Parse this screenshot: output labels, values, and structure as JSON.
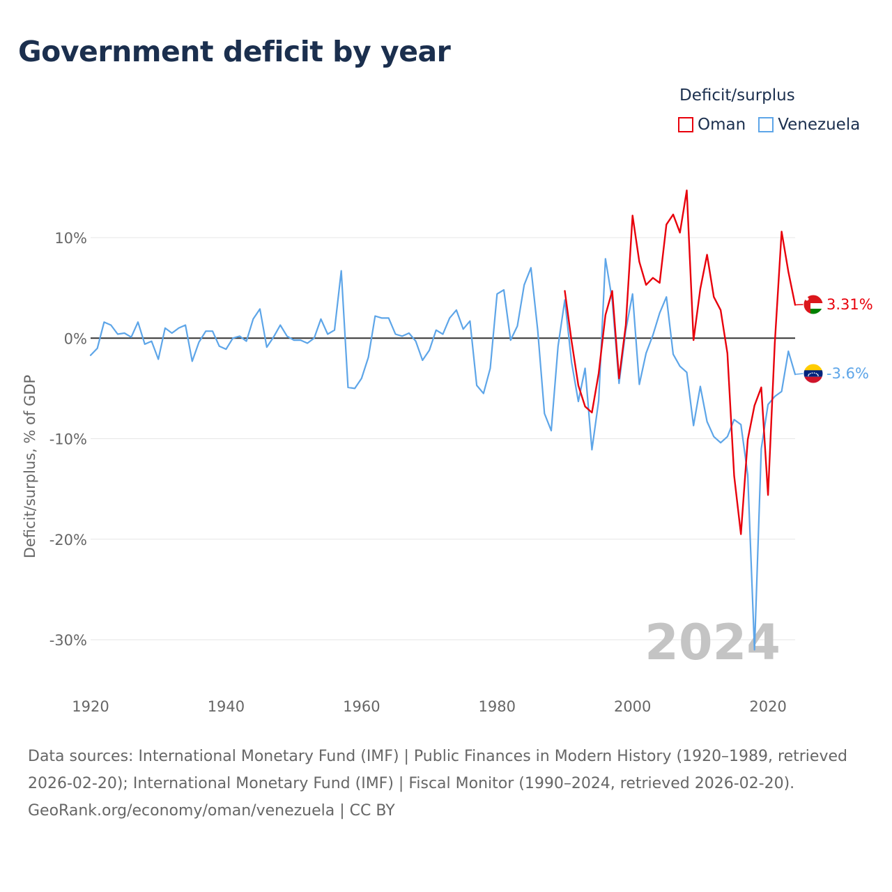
{
  "title": "Government deficit by year",
  "legend": {
    "title": "Deficit/surplus",
    "items": [
      {
        "label": "Oman",
        "color": "#e8000b"
      },
      {
        "label": "Venezuela",
        "color": "#5da5e8"
      }
    ]
  },
  "chart_data": {
    "type": "line",
    "ylabel": "Deficit/surplus, % of GDP",
    "xlabel": "",
    "xlim": [
      1920,
      2024
    ],
    "ylim": [
      -35,
      17
    ],
    "x_ticks": [
      1920,
      1940,
      1960,
      1980,
      2000,
      2020
    ],
    "x_tick_labels": [
      "1920",
      "1940",
      "1960",
      "1980",
      "2000",
      "2020"
    ],
    "y_ticks": [
      10,
      0,
      -10,
      -20,
      -30
    ],
    "y_tick_labels": [
      "10%",
      "0%",
      "-10%",
      "-20%",
      "-30%"
    ],
    "year_label": "2024",
    "series": [
      {
        "name": "Oman",
        "color": "#e8000b",
        "end_label": "3.31%",
        "flag_icon": "oman-flag-icon",
        "x_start": 1990,
        "values": [
          4.7,
          -0.3,
          -4.7,
          -6.8,
          -7.4,
          -3.5,
          2.3,
          4.7,
          -4.0,
          1.3,
          12.2,
          7.6,
          5.3,
          6.0,
          5.5,
          11.3,
          12.3,
          10.5,
          14.7,
          -0.2,
          4.9,
          8.3,
          4.1,
          2.8,
          -1.5,
          -13.7,
          -19.5,
          -10.1,
          -6.7,
          -4.9,
          -15.6,
          -0.5,
          10.6,
          6.6,
          3.31
        ]
      },
      {
        "name": "Venezuela",
        "color": "#5da5e8",
        "end_label": "-3.6%",
        "flag_icon": "venezuela-flag-icon",
        "x_start": 1920,
        "values": [
          -1.7,
          -1.0,
          1.6,
          1.3,
          0.4,
          0.5,
          0.1,
          1.6,
          -0.6,
          -0.3,
          -2.1,
          1.0,
          0.5,
          1.0,
          1.3,
          -2.3,
          -0.4,
          0.7,
          0.7,
          -0.8,
          -1.1,
          0.0,
          0.2,
          -0.3,
          1.9,
          2.9,
          -0.9,
          0.1,
          1.3,
          0.2,
          -0.2,
          -0.2,
          -0.5,
          0.0,
          1.9,
          0.4,
          0.8,
          6.7,
          -4.9,
          -5.0,
          -4.0,
          -1.9,
          2.2,
          2.0,
          2.0,
          0.4,
          0.2,
          0.5,
          -0.3,
          -2.2,
          -1.2,
          0.8,
          0.4,
          2.0,
          2.8,
          0.9,
          1.7,
          -4.7,
          -5.5,
          -3.0,
          4.4,
          4.8,
          -0.2,
          1.2,
          5.3,
          7.0,
          0.8,
          -7.5,
          -9.2,
          -0.8,
          3.8,
          -2.4,
          -6.3,
          -3.0,
          -11.1,
          -6.2,
          7.9,
          3.8,
          -4.5,
          0.8,
          4.4,
          -4.6,
          -1.5,
          0.3,
          2.5,
          4.1,
          -1.6,
          -2.8,
          -3.4,
          -8.7,
          -4.8,
          -8.3,
          -9.8,
          -10.4,
          -9.8,
          -8.1,
          -8.6,
          -13.6,
          -31.0,
          -11.0,
          -6.6,
          -5.8,
          -5.3,
          -1.3,
          -3.6
        ]
      }
    ]
  },
  "footer": {
    "sources": "Data sources: International Monetary Fund (IMF) | Public Finances in Modern History (1920–1989, retrieved 2026-02-20); International Monetary Fund (IMF) | Fiscal Monitor (1990–2024, retrieved 2026-02-20).",
    "credit": "GeoRank.org/economy/oman/venezuela | CC BY"
  }
}
